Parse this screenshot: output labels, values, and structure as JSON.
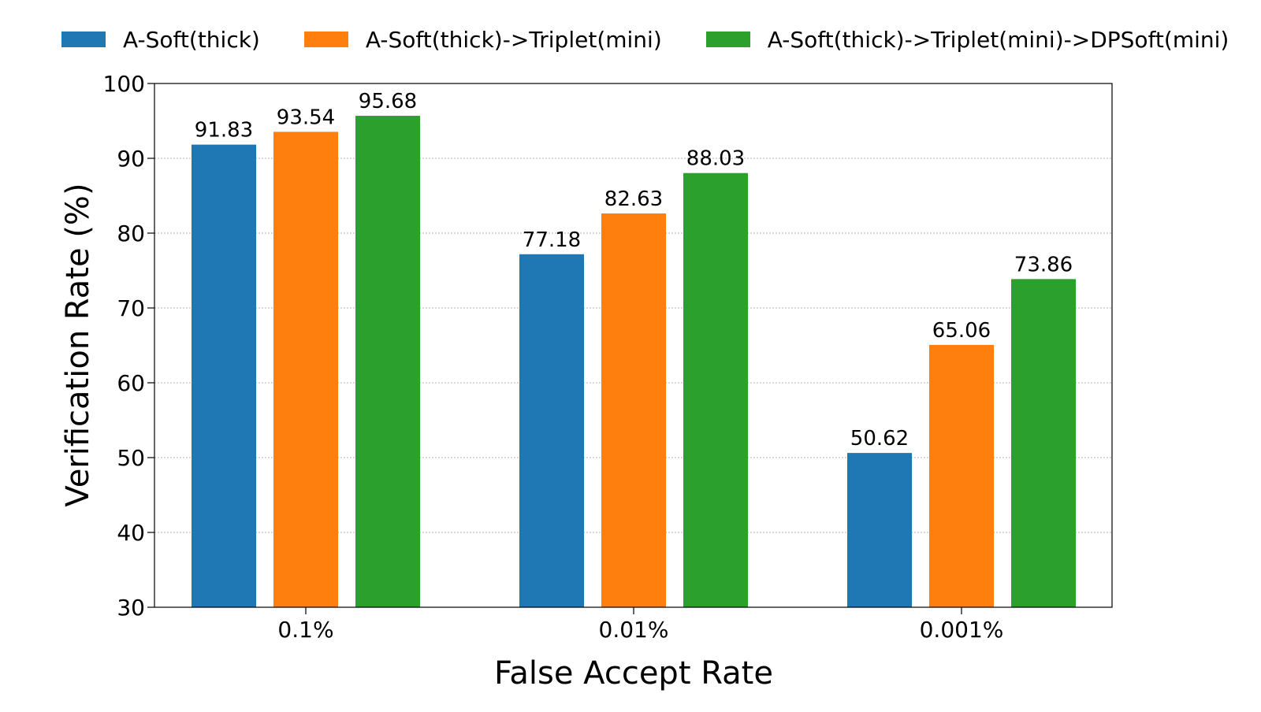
{
  "chart_data": {
    "type": "bar",
    "title": "",
    "xlabel": "False Accept Rate",
    "ylabel": "Verification Rate (%)",
    "categories": [
      "0.1%",
      "0.01%",
      "0.001%"
    ],
    "ylim": [
      30,
      100
    ],
    "yticks": [
      30,
      40,
      50,
      60,
      70,
      80,
      90,
      100
    ],
    "grid": true,
    "legend_position": "top",
    "series": [
      {
        "name": "A-Soft(thick)",
        "color": "#1f77b4",
        "values": [
          91.83,
          77.18,
          50.62
        ],
        "labels": [
          "91.83",
          "77.18",
          "50.62"
        ]
      },
      {
        "name": "A-Soft(thick)->Triplet(mini)",
        "color": "#ff7f0e",
        "values": [
          93.54,
          82.63,
          65.06
        ],
        "labels": [
          "93.54",
          "82.63",
          "65.06"
        ]
      },
      {
        "name": "A-Soft(thick)->Triplet(mini)->DPSoft(mini)",
        "color": "#2ca02c",
        "values": [
          95.68,
          88.03,
          73.86
        ],
        "labels": [
          "95.68",
          "88.03",
          "73.86"
        ]
      }
    ]
  }
}
